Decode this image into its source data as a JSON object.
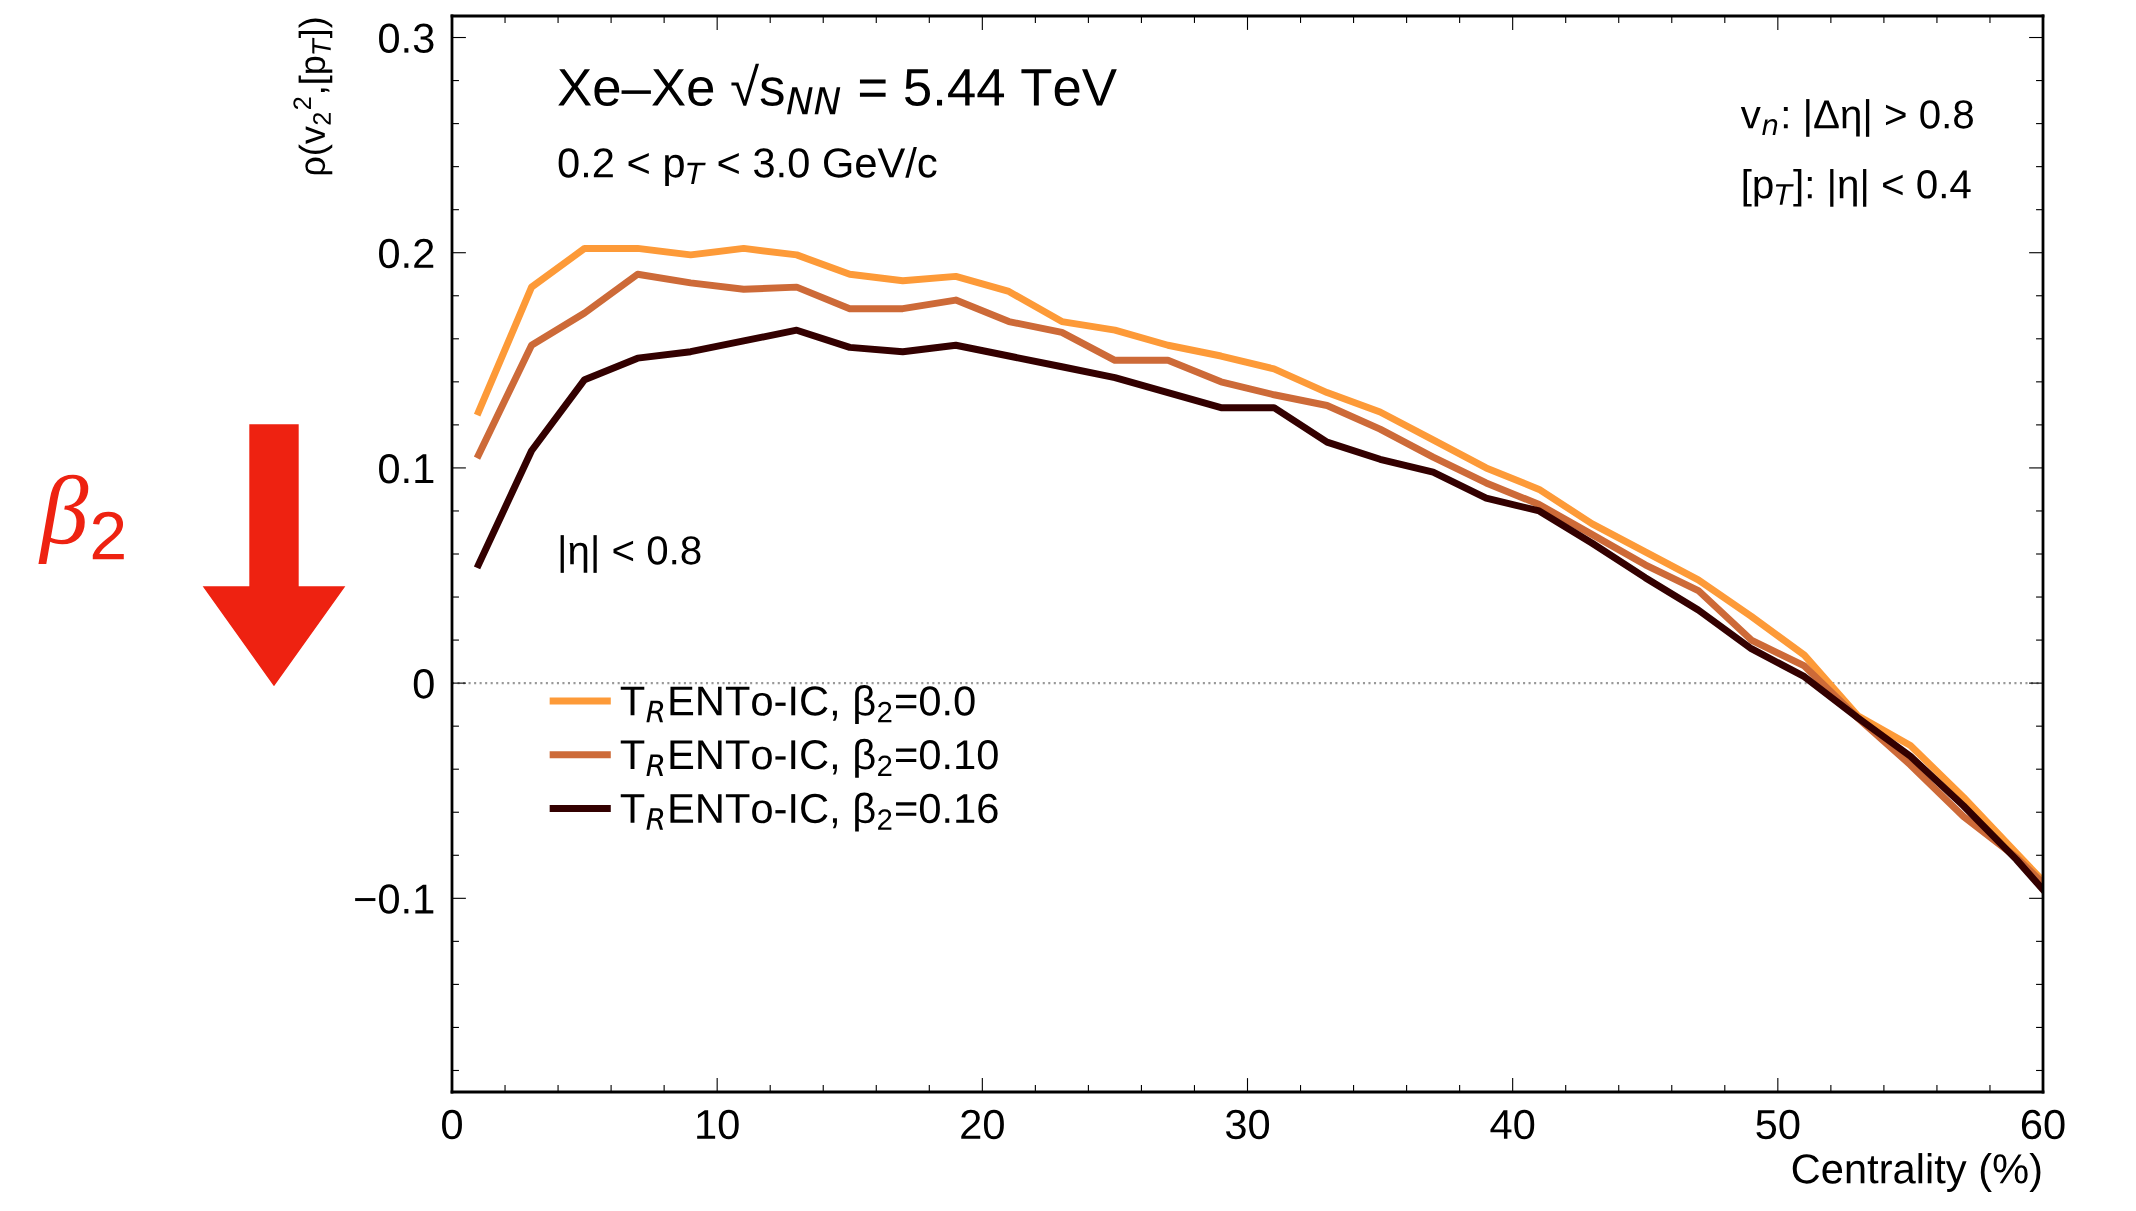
{
  "chart_data": {
    "type": "line",
    "ylabel": "ρ(v$_{2}$$^{2}$,[p$_{T}$])",
    "xlabel": "Centrality (%)",
    "x": [
      1,
      3,
      5,
      7,
      9,
      11,
      13,
      15,
      17,
      19,
      21,
      23,
      25,
      27,
      29,
      31,
      33,
      35,
      37,
      39,
      41,
      43,
      45,
      47,
      49,
      51,
      53,
      55,
      57,
      59,
      60
    ],
    "series": [
      {
        "name": "T$_{R}$ENTo-IC, β$_{2}$=0.0",
        "color": "#fd9a38",
        "values": [
          0.126,
          0.184,
          0.202,
          0.202,
          0.199,
          0.202,
          0.199,
          0.19,
          0.187,
          0.189,
          0.182,
          0.168,
          0.164,
          0.157,
          0.152,
          0.146,
          0.135,
          0.126,
          0.113,
          0.1,
          0.09,
          0.074,
          0.061,
          0.048,
          0.031,
          0.013,
          -0.015,
          -0.029,
          -0.053,
          -0.079,
          -0.092
        ]
      },
      {
        "name": "T$_{R}$ENTo-IC, β$_{2}$=0.10",
        "color": "#cd6a38",
        "values": [
          0.106,
          0.157,
          0.172,
          0.19,
          0.186,
          0.183,
          0.184,
          0.174,
          0.174,
          0.178,
          0.168,
          0.163,
          0.15,
          0.15,
          0.14,
          0.134,
          0.129,
          0.118,
          0.105,
          0.093,
          0.083,
          0.069,
          0.055,
          0.043,
          0.02,
          0.008,
          -0.016,
          -0.038,
          -0.062,
          -0.081,
          -0.093
        ]
      },
      {
        "name": "T$_{R}$ENTo-IC, β$_{2}$=0.16",
        "color": "#330000",
        "values": [
          0.055,
          0.108,
          0.141,
          0.151,
          0.154,
          0.159,
          0.164,
          0.156,
          0.154,
          0.157,
          0.152,
          0.147,
          0.142,
          0.135,
          0.128,
          0.128,
          0.112,
          0.104,
          0.098,
          0.086,
          0.08,
          0.065,
          0.049,
          0.034,
          0.016,
          0.003,
          -0.016,
          -0.034,
          -0.057,
          -0.082,
          -0.096
        ]
      }
    ],
    "xlim": [
      0,
      60
    ],
    "xticks": [
      0,
      {
        "value": 2,
        "label": null
      },
      {
        "value": 4,
        "label": null
      },
      {
        "value": 6,
        "label": null
      },
      {
        "value": 8,
        "label": null
      },
      10,
      {
        "value": 12,
        "label": null
      },
      {
        "value": 14,
        "label": null
      },
      {
        "value": 16,
        "label": null
      },
      {
        "value": 18,
        "label": null
      },
      20,
      {
        "value": 22,
        "label": null
      },
      {
        "value": 24,
        "label": null
      },
      {
        "value": 26,
        "label": null
      },
      {
        "value": 28,
        "label": null
      },
      30,
      {
        "value": 32,
        "label": null
      },
      {
        "value": 34,
        "label": null
      },
      {
        "value": 36,
        "label": null
      },
      {
        "value": 38,
        "label": null
      },
      40,
      {
        "value": 42,
        "label": null
      },
      {
        "value": 44,
        "label": null
      },
      {
        "value": 46,
        "label": null
      },
      {
        "value": 48,
        "label": null
      },
      50,
      {
        "value": 52,
        "label": null
      },
      {
        "value": 54,
        "label": null
      },
      {
        "value": 56,
        "label": null
      },
      {
        "value": 58,
        "label": null
      },
      60
    ],
    "ylim": [
      -0.19,
      0.31
    ],
    "yticks": [
      {
        "value": -0.18,
        "label": null
      },
      {
        "value": -0.16,
        "label": null
      },
      {
        "value": -0.14,
        "label": null
      },
      {
        "value": -0.12,
        "label": null
      },
      {
        "value": -0.1,
        "label": "−0.1"
      },
      {
        "value": -0.08,
        "label": null
      },
      {
        "value": -0.06,
        "label": null
      },
      {
        "value": -0.04,
        "label": null
      },
      {
        "value": -0.02,
        "label": null
      },
      0,
      {
        "value": 0.02,
        "label": null
      },
      {
        "value": 0.04,
        "label": null
      },
      {
        "value": 0.06,
        "label": null
      },
      {
        "value": 0.08,
        "label": null
      },
      0.1,
      {
        "value": 0.12,
        "label": null
      },
      {
        "value": 0.14,
        "label": null
      },
      {
        "value": 0.16,
        "label": null
      },
      {
        "value": 0.18,
        "label": null
      },
      0.2,
      {
        "value": 0.22,
        "label": null
      },
      {
        "value": 0.24,
        "label": null
      },
      {
        "value": 0.26,
        "label": null
      },
      {
        "value": 0.28,
        "label": null
      },
      0.3
    ],
    "ref_lines": [
      {
        "axis": "y",
        "value": 0,
        "color": "#999999",
        "line_style": "dotted"
      }
    ],
    "annotations": [
      "Xe–Xe √s$_{NN}$ = 5.44 TeV",
      "0.2 < p$_{T}$ < 3.0 GeV/c",
      "v$_{n}$: |Δη| > 0.8",
      "[p$_{T}$]: |η| < 0.4",
      "|η| < 0.8",
      "β$_{2}$"
    ],
    "legend": "left",
    "grid": false,
    "marker": "none",
    "line_style": "solid"
  }
}
